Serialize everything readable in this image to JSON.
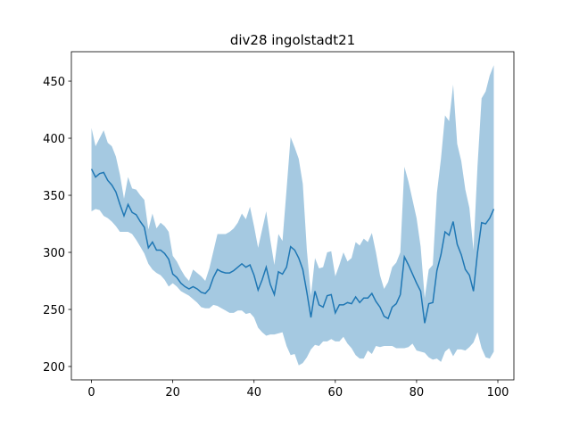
{
  "chart_data": {
    "type": "band_line",
    "title": "div28 ingolstadt21",
    "color": "#1f77b4",
    "band_color": "#1f77b4",
    "band_opacity": 0.4,
    "x": [
      0,
      1,
      2,
      3,
      4,
      5,
      6,
      7,
      8,
      9,
      10,
      11,
      12,
      13,
      14,
      15,
      16,
      17,
      18,
      19,
      20,
      21,
      22,
      23,
      24,
      25,
      26,
      27,
      28,
      29,
      30,
      31,
      32,
      33,
      34,
      35,
      36,
      37,
      38,
      39,
      40,
      41,
      42,
      43,
      44,
      45,
      46,
      47,
      48,
      49,
      50,
      51,
      52,
      53,
      54,
      55,
      56,
      57,
      58,
      59,
      60,
      61,
      62,
      63,
      64,
      65,
      66,
      67,
      68,
      69,
      70,
      71,
      72,
      73,
      74,
      75,
      76,
      77,
      78,
      79,
      80,
      81,
      82,
      83,
      84,
      85,
      86,
      87,
      88,
      89,
      90,
      91,
      92,
      93,
      94,
      95,
      96,
      97,
      98,
      99
    ],
    "values": [
      373,
      366,
      369,
      370,
      363,
      359,
      353,
      342,
      332,
      342,
      335,
      333,
      327,
      322,
      304,
      309,
      302,
      302,
      299,
      294,
      281,
      278,
      273,
      270,
      268,
      270,
      268,
      265,
      264,
      268,
      278,
      285,
      283,
      282,
      282,
      284,
      287,
      290,
      287,
      289,
      280,
      267,
      276,
      287,
      272,
      263,
      283,
      281,
      287,
      305,
      302,
      295,
      285,
      265,
      243,
      266,
      254,
      252,
      262,
      263,
      247,
      254,
      254,
      256,
      255,
      261,
      256,
      260,
      260,
      264,
      257,
      252,
      244,
      242,
      252,
      255,
      263,
      296,
      289,
      281,
      273,
      266,
      238,
      255,
      256,
      284,
      298,
      318,
      315,
      327,
      307,
      298,
      285,
      280,
      266,
      300,
      326,
      325,
      330,
      338
    ],
    "upper": [
      409,
      393,
      400,
      407,
      396,
      393,
      384,
      368,
      347,
      366,
      356,
      355,
      350,
      346,
      320,
      334,
      321,
      326,
      323,
      318,
      297,
      292,
      285,
      279,
      275,
      285,
      282,
      279,
      275,
      286,
      301,
      316,
      316,
      316,
      318,
      321,
      326,
      334,
      329,
      340,
      323,
      304,
      320,
      336,
      311,
      289,
      316,
      310,
      355,
      401,
      392,
      382,
      360,
      302,
      262,
      295,
      286,
      287,
      300,
      301,
      279,
      289,
      300,
      292,
      295,
      309,
      306,
      312,
      309,
      317,
      300,
      280,
      268,
      274,
      287,
      291,
      300,
      375,
      362,
      346,
      330,
      305,
      260,
      285,
      289,
      352,
      382,
      420,
      415,
      447,
      395,
      380,
      355,
      339,
      302,
      376,
      435,
      441,
      455,
      464
    ],
    "lower": [
      336,
      338,
      337,
      332,
      330,
      327,
      323,
      318,
      318,
      318,
      316,
      311,
      305,
      299,
      290,
      285,
      282,
      280,
      276,
      270,
      273,
      270,
      266,
      264,
      262,
      259,
      256,
      252,
      251,
      251,
      254,
      253,
      251,
      249,
      247,
      247,
      249,
      249,
      246,
      247,
      243,
      234,
      230,
      227,
      228,
      228,
      229,
      230,
      218,
      210,
      211,
      201,
      203,
      208,
      215,
      219,
      218,
      222,
      222,
      224,
      222,
      222,
      226,
      220,
      216,
      210,
      207,
      207,
      214,
      211,
      218,
      217,
      218,
      218,
      218,
      216,
      216,
      216,
      217,
      220,
      214,
      213,
      212,
      208,
      206,
      207,
      204,
      213,
      216,
      209,
      215,
      215,
      214,
      217,
      221,
      230,
      216,
      208,
      207,
      213
    ],
    "xlim": [
      -4.95,
      103.95
    ],
    "ylim": [
      188.3,
      475.8
    ],
    "xticks": [
      0,
      20,
      40,
      60,
      80,
      100
    ],
    "yticks": [
      200,
      250,
      300,
      350,
      400,
      450
    ]
  }
}
